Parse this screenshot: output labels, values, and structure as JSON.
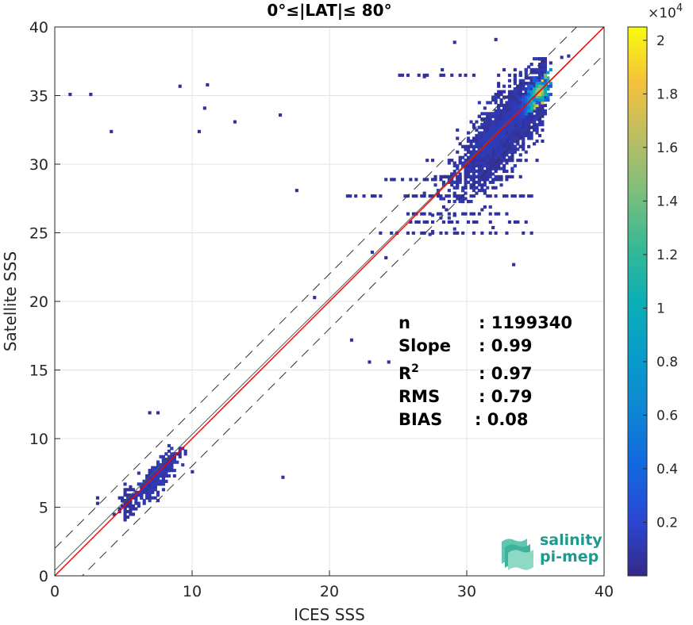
{
  "chart_data": {
    "type": "heatmap",
    "title": "0°≤|LAT|≤ 80°",
    "xlabel": "ICES SSS",
    "ylabel": "Satellite SSS",
    "xlim": [
      0,
      40
    ],
    "ylim": [
      0,
      40
    ],
    "xticks": [
      "0",
      "10",
      "20",
      "30",
      "40"
    ],
    "yticks": [
      "0",
      "5",
      "10",
      "15",
      "20",
      "25",
      "30",
      "35",
      "40"
    ],
    "grid": true,
    "stats": [
      {
        "label": "n",
        "value": ": 1199340"
      },
      {
        "label": "Slope",
        "value": ": 0.99"
      },
      {
        "label": "R",
        "sup": "2",
        "value": ": 0.97"
      },
      {
        "label": "RMS",
        "value": ": 0.79"
      },
      {
        "label": "BIAS",
        "value": ": 0.08"
      }
    ],
    "reference_lines": {
      "identity": {
        "slope": 1,
        "intercept": 0,
        "color": "#ff0000"
      },
      "fit": {
        "slope": 0.99,
        "intercept": 0.4,
        "color": "#555555"
      },
      "bounds_dashed": {
        "offset": 2
      }
    },
    "density_clusters": [
      {
        "x": 33.0,
        "y": 32.5,
        "sx": 1.8,
        "sy": 2.6,
        "level": 0.05
      },
      {
        "x": 35.2,
        "y": 35.2,
        "sx": 0.3,
        "sy": 0.35,
        "level": 1.0
      },
      {
        "x": 7.3,
        "y": 7.0,
        "sx": 0.7,
        "sy": 0.8,
        "level": 0.03
      },
      {
        "x": 5.2,
        "y": 5.3,
        "sx": 0.3,
        "sy": 0.5,
        "level": 0.02
      }
    ],
    "colorbar": {
      "multiplier": "×10",
      "exponent": "4",
      "ticks": [
        "0.2",
        "0.4",
        "0.6",
        "0.8",
        "1",
        "1.2",
        "1.4",
        "1.6",
        "1.8",
        "2"
      ],
      "range": [
        0,
        2.05
      ],
      "colormap": "parula"
    }
  },
  "logo": {
    "line1": "salinity",
    "line2": "pi-mep"
  }
}
